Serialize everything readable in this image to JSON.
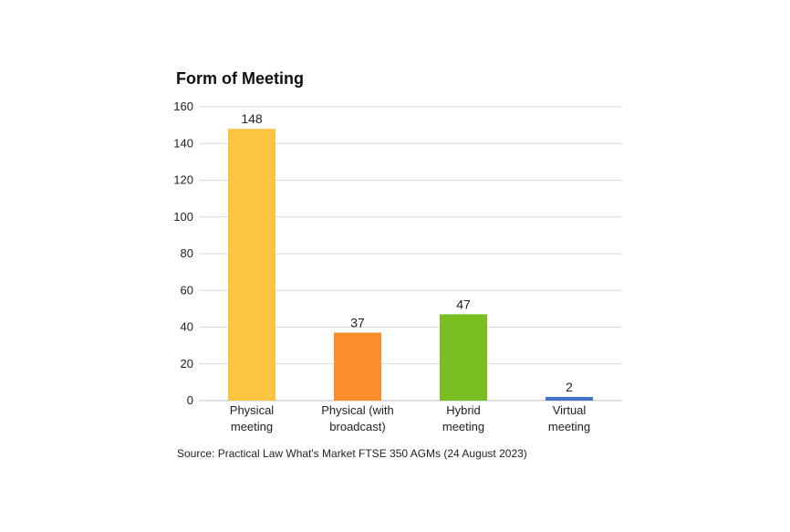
{
  "chart_data": {
    "type": "bar",
    "title": "Form of Meeting",
    "categories": [
      [
        "Physical",
        "meeting"
      ],
      [
        "Physical (with",
        "broadcast)"
      ],
      [
        "Hybrid",
        "meeting"
      ],
      [
        "Virtual",
        "meeting"
      ]
    ],
    "values": [
      148,
      37,
      47,
      2
    ],
    "colors": [
      "#FDC640",
      "#F98E2B",
      "#78BE20",
      "#4472C4"
    ],
    "ylim": [
      0,
      160
    ],
    "yticks": [
      0,
      20,
      40,
      60,
      80,
      100,
      120,
      140,
      160
    ],
    "grid": true,
    "xlabel": "",
    "ylabel": ""
  },
  "source": "Source: Practical Law What's Market FTSE 350 AGMs (24 August 2023)"
}
